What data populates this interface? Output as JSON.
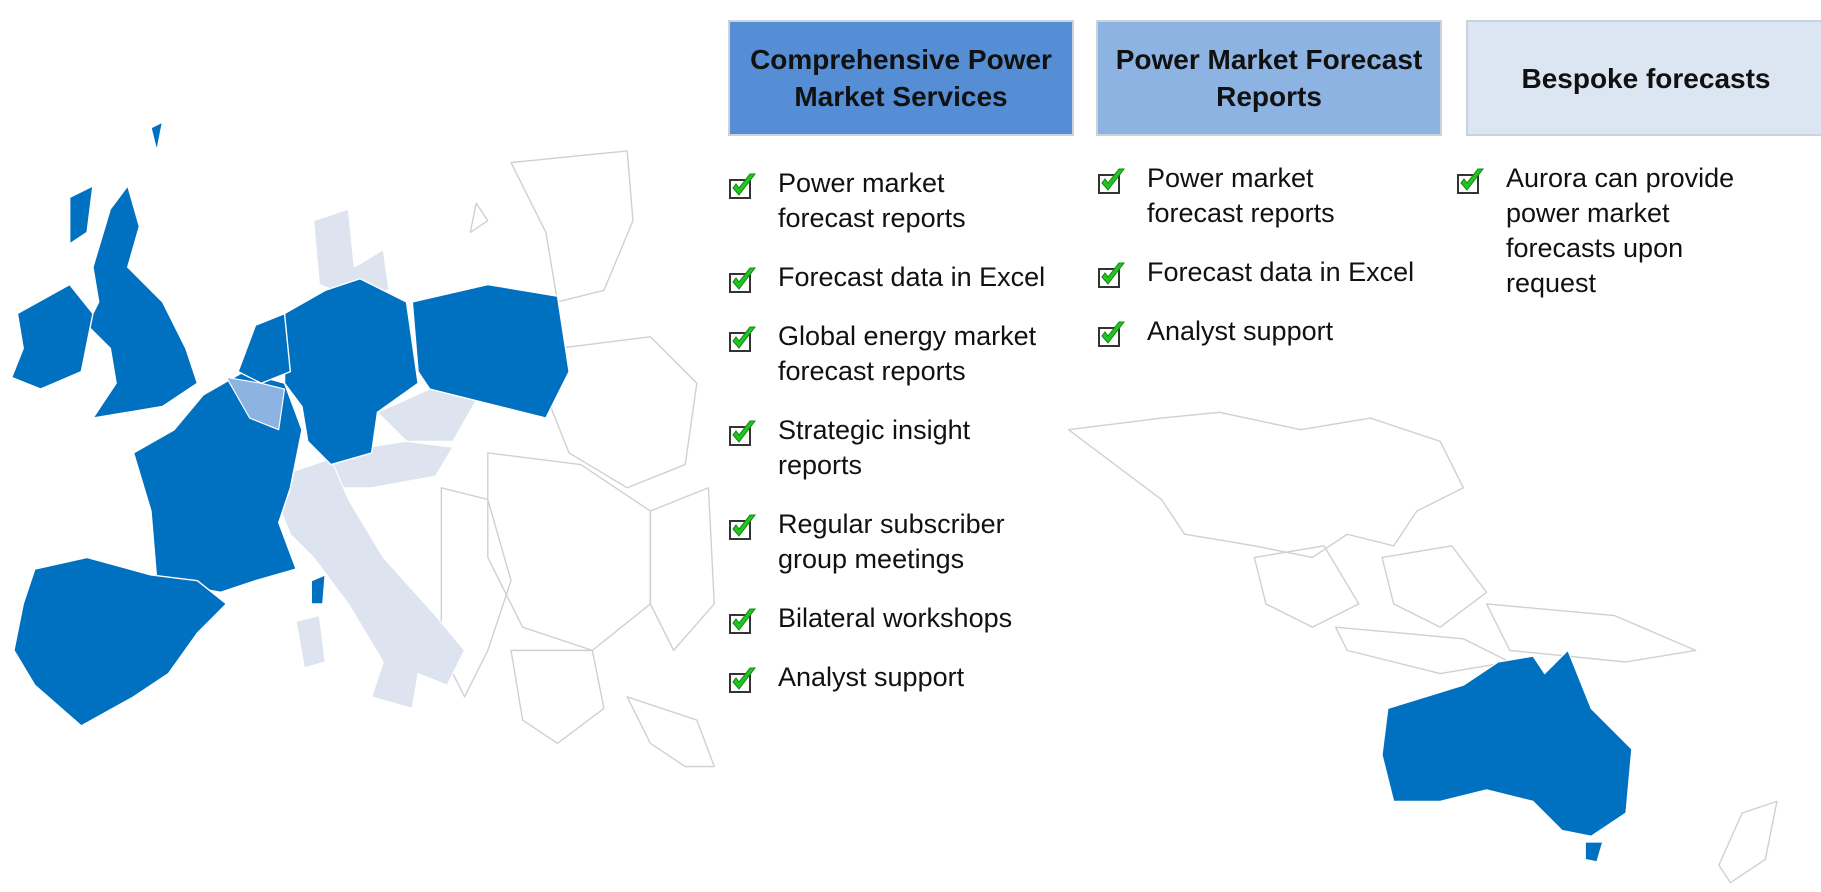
{
  "columns": [
    {
      "title": "Comprehensive Power Market Services",
      "items": [
        [
          "Power market",
          "forecast reports"
        ],
        [
          "Forecast data in Excel"
        ],
        [
          "Global energy market",
          "forecast reports"
        ],
        [
          "Strategic insight",
          "reports"
        ],
        [
          "Regular subscriber",
          "group meetings"
        ],
        [
          "Bilateral workshops"
        ],
        [
          "Analyst support"
        ]
      ]
    },
    {
      "title": "Power Market Forecast Reports",
      "items": [
        [
          "Power market",
          "forecast reports"
        ],
        [
          "Forecast data in Excel"
        ],
        [
          "Analyst support"
        ]
      ]
    },
    {
      "title": "Bespoke forecasts",
      "items": [
        [
          "Aurora can provide",
          "power market",
          "forecasts upon",
          "request"
        ]
      ]
    }
  ]
}
